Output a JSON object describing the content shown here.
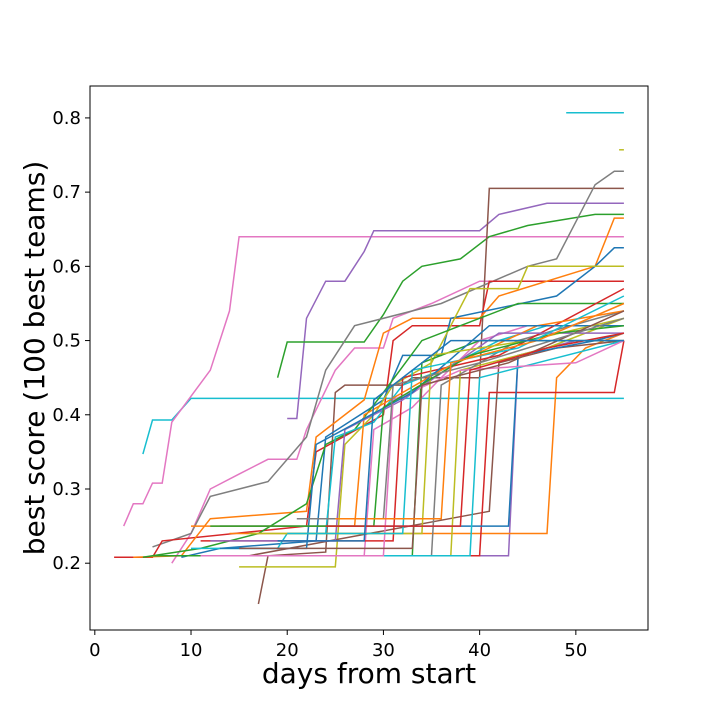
{
  "chart_data": {
    "type": "line",
    "title": "",
    "xlabel": "days from start",
    "ylabel": "best score (100 best teams)",
    "xlim": [
      -0.5,
      57.5
    ],
    "ylim": [
      0.11,
      0.843
    ],
    "xticks": [
      0,
      10,
      20,
      30,
      40,
      50
    ],
    "yticks": [
      0.2,
      0.3,
      0.4,
      0.5,
      0.6,
      0.7,
      0.8
    ],
    "ytick_labels": [
      "0.2",
      "0.3",
      "0.4",
      "0.5",
      "0.6",
      "0.7",
      "0.8"
    ],
    "grid": false,
    "legend": "none",
    "series": [
      {
        "color": "#17becf",
        "points": [
          [
            49,
            0.807
          ],
          [
            55,
            0.807
          ]
        ]
      },
      {
        "color": "#bcbd22",
        "points": [
          [
            54.5,
            0.757
          ],
          [
            55,
            0.757
          ]
        ]
      },
      {
        "color": "#17becf",
        "points": [
          [
            5,
            0.347
          ],
          [
            6,
            0.393
          ],
          [
            8,
            0.393
          ],
          [
            10,
            0.422
          ],
          [
            55,
            0.422
          ]
        ]
      },
      {
        "color": "#e377c2",
        "points": [
          [
            3,
            0.25
          ],
          [
            4,
            0.28
          ],
          [
            5,
            0.28
          ],
          [
            6,
            0.308
          ],
          [
            7,
            0.308
          ],
          [
            8,
            0.39
          ],
          [
            12,
            0.46
          ],
          [
            14,
            0.54
          ],
          [
            15,
            0.64
          ],
          [
            55,
            0.64
          ]
        ]
      },
      {
        "color": "#e377c2",
        "points": [
          [
            8,
            0.2
          ],
          [
            10,
            0.24
          ],
          [
            12,
            0.3
          ],
          [
            15,
            0.32
          ],
          [
            18,
            0.34
          ],
          [
            21,
            0.34
          ],
          [
            22,
            0.38
          ],
          [
            25,
            0.46
          ],
          [
            27,
            0.49
          ],
          [
            30,
            0.49
          ],
          [
            31,
            0.53
          ],
          [
            35,
            0.55
          ],
          [
            40,
            0.58
          ],
          [
            55,
            0.58
          ]
        ]
      },
      {
        "color": "#9467bd",
        "points": [
          [
            20,
            0.395
          ],
          [
            21,
            0.395
          ],
          [
            22,
            0.53
          ],
          [
            24,
            0.58
          ],
          [
            26,
            0.58
          ],
          [
            28,
            0.62
          ],
          [
            29,
            0.648
          ],
          [
            40,
            0.648
          ],
          [
            42,
            0.67
          ],
          [
            47,
            0.685
          ],
          [
            55,
            0.685
          ]
        ]
      },
      {
        "color": "#2ca02c",
        "points": [
          [
            19,
            0.45
          ],
          [
            20,
            0.498
          ],
          [
            28,
            0.498
          ],
          [
            30,
            0.535
          ],
          [
            32,
            0.58
          ],
          [
            34,
            0.6
          ],
          [
            38,
            0.61
          ],
          [
            41,
            0.64
          ],
          [
            45,
            0.655
          ],
          [
            52,
            0.67
          ],
          [
            55,
            0.67
          ]
        ]
      },
      {
        "color": "#8c564b",
        "points": [
          [
            17,
            0.145
          ],
          [
            18,
            0.21
          ],
          [
            24,
            0.215
          ],
          [
            25,
            0.43
          ],
          [
            26,
            0.44
          ],
          [
            32,
            0.44
          ],
          [
            33,
            0.45
          ],
          [
            40,
            0.45
          ],
          [
            41,
            0.705
          ],
          [
            50,
            0.705
          ],
          [
            55,
            0.705
          ]
        ]
      },
      {
        "color": "#7f7f7f",
        "points": [
          [
            6,
            0.222
          ],
          [
            10,
            0.24
          ],
          [
            12,
            0.29
          ],
          [
            18,
            0.31
          ],
          [
            22,
            0.37
          ],
          [
            24,
            0.46
          ],
          [
            27,
            0.52
          ],
          [
            36,
            0.55
          ],
          [
            45,
            0.6
          ],
          [
            48,
            0.61
          ],
          [
            52,
            0.71
          ],
          [
            54,
            0.728
          ],
          [
            55,
            0.728
          ]
        ]
      },
      {
        "color": "#d62728",
        "points": [
          [
            2,
            0.208
          ],
          [
            6,
            0.208
          ],
          [
            7,
            0.23
          ],
          [
            22,
            0.25
          ],
          [
            23,
            0.35
          ],
          [
            30,
            0.4
          ],
          [
            31,
            0.5
          ],
          [
            33,
            0.52
          ],
          [
            40,
            0.52
          ],
          [
            41,
            0.58
          ],
          [
            55,
            0.58
          ]
        ]
      },
      {
        "color": "#ff7f0e",
        "points": [
          [
            4,
            0.208
          ],
          [
            9,
            0.21
          ],
          [
            12,
            0.26
          ],
          [
            22,
            0.27
          ],
          [
            23,
            0.37
          ],
          [
            28,
            0.42
          ],
          [
            30,
            0.51
          ],
          [
            33,
            0.53
          ],
          [
            40,
            0.53
          ],
          [
            42,
            0.56
          ],
          [
            52,
            0.6
          ],
          [
            54,
            0.665
          ],
          [
            55,
            0.665
          ]
        ]
      },
      {
        "color": "#1f77b4",
        "points": [
          [
            9,
            0.208
          ],
          [
            13,
            0.22
          ],
          [
            23,
            0.23
          ],
          [
            24,
            0.37
          ],
          [
            30,
            0.42
          ],
          [
            32,
            0.48
          ],
          [
            36,
            0.48
          ],
          [
            37,
            0.53
          ],
          [
            48,
            0.56
          ],
          [
            52,
            0.6
          ],
          [
            54,
            0.625
          ],
          [
            55,
            0.625
          ]
        ]
      },
      {
        "color": "#bcbd22",
        "points": [
          [
            15,
            0.195
          ],
          [
            25,
            0.195
          ],
          [
            26,
            0.36
          ],
          [
            29,
            0.4
          ],
          [
            31,
            0.44
          ],
          [
            35,
            0.47
          ],
          [
            39,
            0.57
          ],
          [
            44,
            0.57
          ],
          [
            45,
            0.6
          ],
          [
            55,
            0.6
          ]
        ]
      },
      {
        "color": "#2ca02c",
        "points": [
          [
            5,
            0.208
          ],
          [
            11,
            0.22
          ],
          [
            17,
            0.24
          ],
          [
            22,
            0.28
          ],
          [
            24,
            0.36
          ],
          [
            27,
            0.38
          ],
          [
            30,
            0.43
          ],
          [
            34,
            0.5
          ],
          [
            38,
            0.52
          ],
          [
            44,
            0.55
          ],
          [
            55,
            0.55
          ]
        ]
      },
      {
        "color": "#17becf",
        "points": [
          [
            10,
            0.22
          ],
          [
            19,
            0.22
          ],
          [
            20,
            0.24
          ],
          [
            24,
            0.24
          ],
          [
            25,
            0.37
          ],
          [
            29,
            0.39
          ],
          [
            32,
            0.44
          ],
          [
            36,
            0.46
          ],
          [
            42,
            0.5
          ],
          [
            47,
            0.52
          ],
          [
            55,
            0.52
          ]
        ]
      },
      {
        "color": "#e377c2",
        "points": [
          [
            9,
            0.21
          ],
          [
            28,
            0.21
          ],
          [
            29,
            0.38
          ],
          [
            33,
            0.41
          ],
          [
            36,
            0.45
          ],
          [
            40,
            0.5
          ],
          [
            45,
            0.52
          ],
          [
            55,
            0.52
          ]
        ]
      },
      {
        "color": "#9467bd",
        "points": [
          [
            12,
            0.21
          ],
          [
            43,
            0.21
          ],
          [
            44,
            0.48
          ],
          [
            50,
            0.5
          ],
          [
            55,
            0.5
          ]
        ]
      },
      {
        "color": "#ff7f0e",
        "points": [
          [
            14,
            0.24
          ],
          [
            47,
            0.24
          ],
          [
            48,
            0.45
          ],
          [
            51,
            0.49
          ],
          [
            55,
            0.51
          ]
        ]
      },
      {
        "color": "#8c564b",
        "points": [
          [
            16,
            0.21
          ],
          [
            41,
            0.27
          ],
          [
            42,
            0.47
          ],
          [
            48,
            0.49
          ],
          [
            55,
            0.5
          ]
        ]
      },
      {
        "color": "#d62728",
        "points": [
          [
            11,
            0.21
          ],
          [
            40,
            0.21
          ],
          [
            41,
            0.43
          ],
          [
            54,
            0.43
          ],
          [
            55,
            0.5
          ]
        ]
      },
      {
        "color": "#1f77b4",
        "points": [
          [
            13,
            0.25
          ],
          [
            43,
            0.25
          ],
          [
            44,
            0.48
          ],
          [
            52,
            0.5
          ],
          [
            55,
            0.51
          ]
        ]
      },
      {
        "color": "#bcbd22",
        "points": [
          [
            10,
            0.21
          ],
          [
            37,
            0.21
          ],
          [
            38,
            0.46
          ],
          [
            47,
            0.49
          ],
          [
            55,
            0.53
          ]
        ]
      },
      {
        "color": "#7f7f7f",
        "points": [
          [
            8,
            0.21
          ],
          [
            35,
            0.21
          ],
          [
            36,
            0.44
          ],
          [
            44,
            0.5
          ],
          [
            55,
            0.54
          ]
        ]
      },
      {
        "color": "#2ca02c",
        "points": [
          [
            6,
            0.21
          ],
          [
            33,
            0.21
          ],
          [
            34,
            0.47
          ],
          [
            40,
            0.5
          ],
          [
            55,
            0.5
          ]
        ]
      },
      {
        "color": "#d62728",
        "points": [
          [
            11,
            0.23
          ],
          [
            31,
            0.23
          ],
          [
            32,
            0.45
          ],
          [
            42,
            0.48
          ],
          [
            55,
            0.57
          ]
        ]
      },
      {
        "color": "#17becf",
        "points": [
          [
            12,
            0.21
          ],
          [
            39,
            0.21
          ],
          [
            40,
            0.45
          ],
          [
            46,
            0.47
          ],
          [
            55,
            0.5
          ]
        ]
      },
      {
        "color": "#ff7f0e",
        "points": [
          [
            10,
            0.25
          ],
          [
            27,
            0.25
          ],
          [
            28,
            0.4
          ],
          [
            36,
            0.46
          ],
          [
            46,
            0.52
          ],
          [
            55,
            0.54
          ]
        ]
      },
      {
        "color": "#9467bd",
        "points": [
          [
            12,
            0.23
          ],
          [
            25,
            0.23
          ],
          [
            26,
            0.38
          ],
          [
            32,
            0.42
          ],
          [
            42,
            0.51
          ],
          [
            55,
            0.51
          ]
        ]
      },
      {
        "color": "#e377c2",
        "points": [
          [
            11,
            0.21
          ],
          [
            30,
            0.21
          ],
          [
            31,
            0.42
          ],
          [
            38,
            0.46
          ],
          [
            50,
            0.47
          ],
          [
            55,
            0.5
          ]
        ]
      },
      {
        "color": "#1f77b4",
        "points": [
          [
            13,
            0.22
          ],
          [
            22,
            0.22
          ],
          [
            23,
            0.36
          ],
          [
            33,
            0.43
          ],
          [
            41,
            0.52
          ],
          [
            55,
            0.52
          ]
        ]
      },
      {
        "color": "#bcbd22",
        "points": [
          [
            16,
            0.24
          ],
          [
            34,
            0.24
          ],
          [
            35,
            0.48
          ],
          [
            45,
            0.5
          ],
          [
            55,
            0.53
          ]
        ]
      },
      {
        "color": "#2ca02c",
        "points": [
          [
            12,
            0.25
          ],
          [
            29,
            0.25
          ],
          [
            30,
            0.41
          ],
          [
            39,
            0.48
          ],
          [
            48,
            0.51
          ],
          [
            55,
            0.52
          ]
        ]
      },
      {
        "color": "#8c564b",
        "points": [
          [
            15,
            0.22
          ],
          [
            33,
            0.22
          ],
          [
            34,
            0.44
          ],
          [
            43,
            0.47
          ],
          [
            55,
            0.54
          ]
        ]
      },
      {
        "color": "#17becf",
        "points": [
          [
            20,
            0.24
          ],
          [
            32,
            0.24
          ],
          [
            33,
            0.46
          ],
          [
            44,
            0.49
          ],
          [
            55,
            0.56
          ]
        ]
      },
      {
        "color": "#7f7f7f",
        "points": [
          [
            21,
            0.26
          ],
          [
            30,
            0.26
          ],
          [
            31,
            0.44
          ],
          [
            40,
            0.47
          ],
          [
            55,
            0.53
          ]
        ]
      },
      {
        "color": "#d62728",
        "points": [
          [
            24,
            0.25
          ],
          [
            38,
            0.25
          ],
          [
            39,
            0.46
          ],
          [
            47,
            0.49
          ],
          [
            55,
            0.51
          ]
        ]
      },
      {
        "color": "#ff7f0e",
        "points": [
          [
            25,
            0.26
          ],
          [
            36,
            0.26
          ],
          [
            37,
            0.47
          ],
          [
            46,
            0.5
          ],
          [
            55,
            0.55
          ]
        ]
      },
      {
        "color": "#1f77b4",
        "points": [
          [
            19,
            0.23
          ],
          [
            28,
            0.23
          ],
          [
            29,
            0.42
          ],
          [
            37,
            0.5
          ],
          [
            55,
            0.5
          ]
        ]
      }
    ]
  }
}
